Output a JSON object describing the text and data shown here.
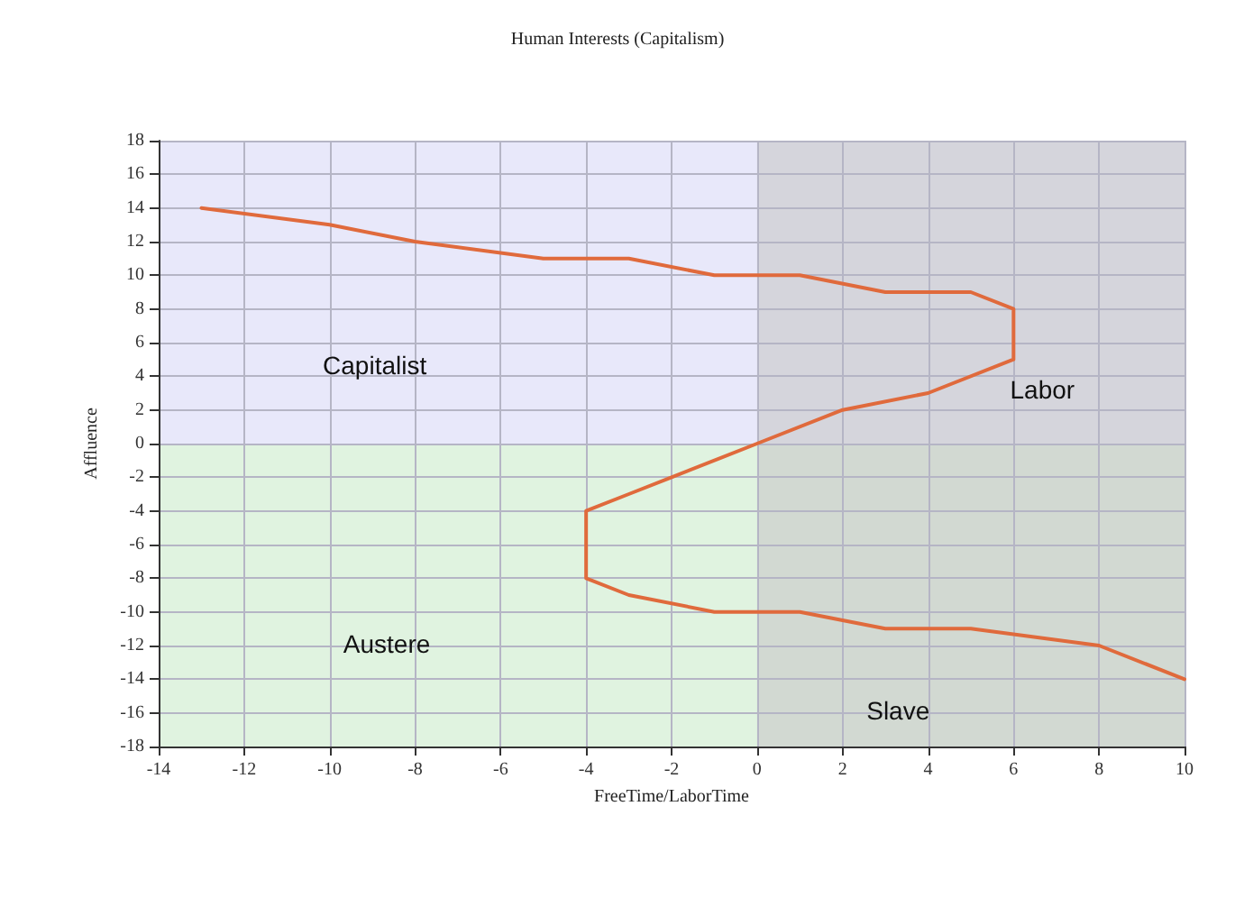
{
  "chart_data": {
    "type": "line",
    "title": "Human Interests (Capitalism)",
    "xlabel": "FreeTime/LaborTime",
    "ylabel": "Affluence",
    "series": [
      {
        "color": "#e06a3c",
        "x": [
          -13,
          -10,
          -8,
          -5,
          -3,
          -1,
          1,
          3,
          5,
          6,
          6,
          4,
          2,
          0,
          -2,
          -3,
          -4,
          -4,
          -3,
          -1,
          1,
          3,
          5,
          8,
          10
        ],
        "values": [
          14,
          13,
          12,
          11,
          11,
          10,
          10,
          9,
          9,
          8,
          5,
          3,
          2,
          0,
          -2,
          -3,
          -4,
          -8,
          -9,
          -10,
          -10,
          -11,
          -11,
          -12,
          -14
        ]
      }
    ],
    "xlim": [
      -14,
      10
    ],
    "xticks": [
      -14,
      -12,
      -10,
      -8,
      -6,
      -4,
      -2,
      0,
      2,
      4,
      6,
      8,
      10
    ],
    "ylim": [
      -18,
      18
    ],
    "yticks": [
      -18,
      -16,
      -14,
      -12,
      -10,
      -8,
      -6,
      -4,
      -2,
      0,
      2,
      4,
      6,
      8,
      10,
      12,
      14,
      16,
      18
    ],
    "bands": [
      {
        "axis": "y",
        "from": 0,
        "to": 18,
        "color": "#e8e8fa"
      },
      {
        "axis": "y",
        "from": -18,
        "to": 0,
        "color": "#e0f3e0"
      },
      {
        "axis": "x",
        "from": 0,
        "to": 10,
        "color": "#c8c8c8"
      }
    ],
    "annotations": [
      "Capitalist",
      "Labor",
      "Austere",
      "Slave"
    ],
    "grid": true,
    "marker": "none",
    "line_style": "solid"
  }
}
